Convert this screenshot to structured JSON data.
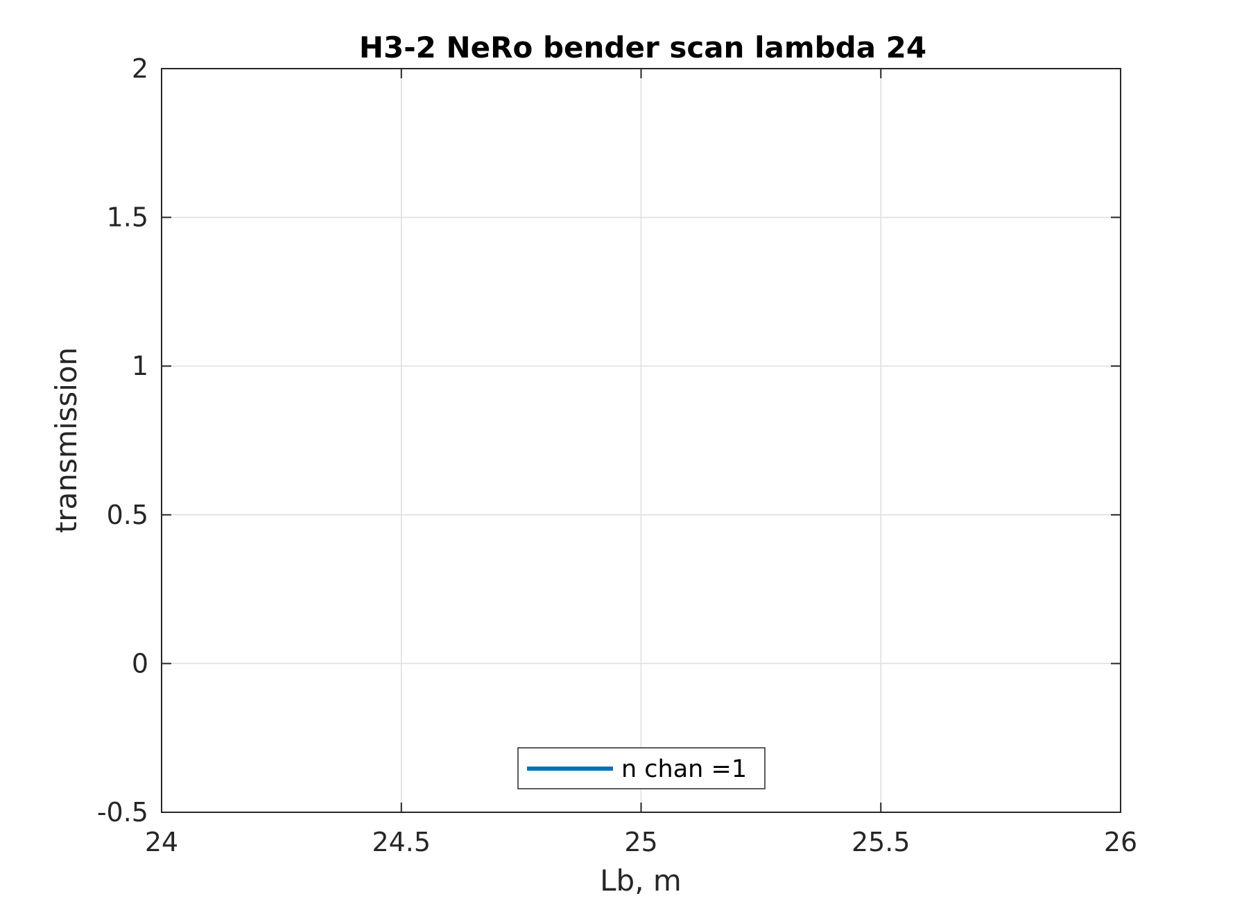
{
  "chart_data": {
    "type": "line",
    "title": "H3-2 NeRo bender scan lambda 24",
    "xlabel": "Lb, m",
    "ylabel": "transmission",
    "xlim": [
      24,
      26
    ],
    "ylim": [
      -0.5,
      2
    ],
    "xticks": [
      24,
      24.5,
      25,
      25.5,
      26
    ],
    "xtick_labels": [
      "24",
      "24.5",
      "25",
      "25.5",
      "26"
    ],
    "yticks": [
      -0.5,
      0,
      0.5,
      1,
      1.5,
      2
    ],
    "ytick_labels": [
      "-0.5",
      "0",
      "0.5",
      "1",
      "1.5",
      "2"
    ],
    "grid": true,
    "legend_position": "bottom-center",
    "series": [
      {
        "name": "n chan =1",
        "color": "#0072BD",
        "x": [],
        "y": []
      }
    ]
  },
  "colors": {
    "axis": "#262626",
    "grid": "#dedede",
    "background": "#ffffff"
  }
}
